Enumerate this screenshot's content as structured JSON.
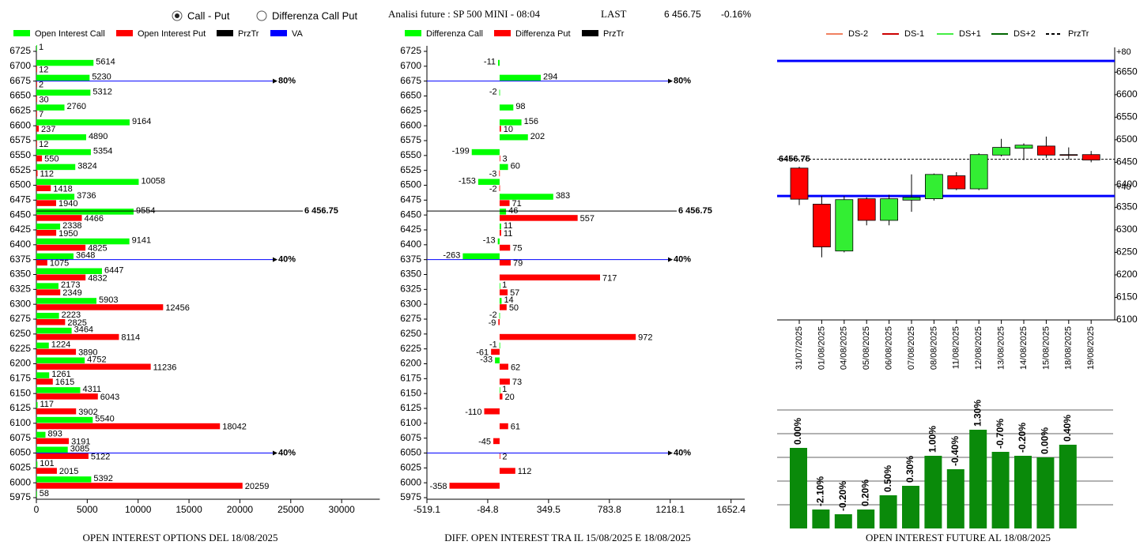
{
  "header": {
    "options": [
      "Call - Put",
      "Differenza Call Put"
    ],
    "title": "Analisi future : SP 500 MINI - 08:04",
    "last_label": "LAST",
    "last": "6 456.75",
    "change": "-0.16%"
  },
  "chart_data": [
    {
      "type": "hbar",
      "title": "OPEN INTEREST OPTIONS DEL 18/08/2025",
      "categories": [
        6725,
        6700,
        6675,
        6650,
        6625,
        6600,
        6575,
        6550,
        6525,
        6500,
        6475,
        6450,
        6425,
        6400,
        6375,
        6350,
        6325,
        6300,
        6275,
        6250,
        6225,
        6200,
        6175,
        6150,
        6125,
        6100,
        6075,
        6050,
        6025,
        6000,
        5975
      ],
      "series": [
        {
          "name": "Open Interest Call",
          "color": "#00ff00",
          "values": [
            1,
            5614,
            5230,
            5312,
            2760,
            9164,
            4890,
            5354,
            3824,
            10058,
            3736,
            9554,
            2338,
            9141,
            3648,
            6447,
            2173,
            5903,
            2223,
            3464,
            1224,
            4752,
            1261,
            4311,
            117,
            5540,
            893,
            3085,
            101,
            5392,
            58
          ]
        },
        {
          "name": "Open Interest Put",
          "color": "#ff0000",
          "values": [
            null,
            12,
            2,
            30,
            7,
            237,
            12,
            550,
            112,
            1418,
            1940,
            4466,
            1950,
            4825,
            1075,
            4832,
            2349,
            12456,
            2825,
            8114,
            3890,
            11236,
            1615,
            6043,
            3902,
            18042,
            3191,
            5122,
            2015,
            20259,
            null
          ]
        }
      ],
      "xlim": [
        0,
        33750
      ],
      "xticks": [
        0,
        5000,
        10000,
        15000,
        20000,
        25000,
        30000
      ],
      "lines": [
        {
          "name": "PrzTr",
          "color": "#000000",
          "levels": [
            {
              "value": 6456.75,
              "label": "6 456.75"
            }
          ]
        },
        {
          "name": "VA",
          "color": "#0000ff",
          "levels": [
            {
              "value": 6675,
              "label": "80%"
            },
            {
              "value": 6375,
              "label": "40%"
            },
            {
              "value": 6050,
              "label": "40%"
            }
          ]
        }
      ]
    },
    {
      "type": "hbar",
      "title": "DIFF. OPEN INTEREST TRA IL 15/08/2025 E 18/08/2025",
      "categories": [
        6725,
        6700,
        6675,
        6650,
        6625,
        6600,
        6575,
        6550,
        6525,
        6500,
        6475,
        6450,
        6425,
        6400,
        6375,
        6350,
        6325,
        6300,
        6275,
        6250,
        6225,
        6200,
        6175,
        6150,
        6125,
        6100,
        6075,
        6050,
        6025,
        6000,
        5975
      ],
      "series": [
        {
          "name": "Differenza Call",
          "color": "#00ff00",
          "values": [
            null,
            -11,
            294,
            -2,
            98,
            156,
            202,
            -199,
            60,
            -153,
            383,
            46,
            11,
            -13,
            -263,
            null,
            1,
            14,
            -2,
            null,
            -1,
            -33,
            null,
            1,
            null,
            null,
            null,
            null,
            null,
            null,
            null
          ]
        },
        {
          "name": "Differenza Put",
          "color": "#ff0000",
          "values": [
            null,
            null,
            null,
            null,
            null,
            10,
            null,
            3,
            -3,
            -2,
            71,
            557,
            11,
            75,
            79,
            717,
            57,
            50,
            -9,
            972,
            -61,
            62,
            73,
            20,
            -110,
            61,
            -45,
            2,
            112,
            -358,
            null
          ]
        }
      ],
      "xlim": [
        -519.1,
        1750
      ],
      "xticks": [
        -519.1,
        -84.8,
        349.5,
        783.8,
        1218.1,
        1652.4
      ],
      "lines": [
        {
          "name": "PrzTr",
          "color": "#000000",
          "levels": [
            {
              "value": 6456.75,
              "label": "6 456.75"
            }
          ]
        },
        {
          "color": "#0000ff",
          "levels": [
            {
              "value": 6675,
              "label": "80%"
            },
            {
              "value": 6375,
              "label": "40%"
            },
            {
              "value": 6050,
              "label": "40%"
            }
          ]
        }
      ]
    },
    {
      "type": "candlestick",
      "categories": [
        "31/07/2025",
        "01/08/2025",
        "04/08/2025",
        "05/08/2025",
        "06/08/2025",
        "07/08/2025",
        "08/08/2025",
        "11/08/2025",
        "12/08/2025",
        "13/08/2025",
        "14/08/2025",
        "15/08/2025",
        "18/08/2025",
        "19/08/2025"
      ],
      "open": [
        6437,
        6357,
        6253,
        6369,
        6321,
        6366,
        6369,
        6420,
        6391,
        6466,
        6481,
        6486,
        6467,
        6467
      ],
      "high": [
        6440,
        6375,
        6375,
        6372,
        6378,
        6423,
        6425,
        6428,
        6470,
        6502,
        6492,
        6507,
        6483,
        6475
      ],
      "low": [
        6355,
        6239,
        6250,
        6310,
        6310,
        6340,
        6365,
        6388,
        6388,
        6463,
        6455,
        6460,
        6456,
        6450
      ],
      "close": [
        6368,
        6262,
        6367,
        6321,
        6369,
        6372,
        6423,
        6391,
        6467,
        6483,
        6488,
        6466,
        6466,
        6455
      ],
      "up_color": "#33ee33",
      "down_color": "#ff0000",
      "ylim": [
        6100,
        6705
      ],
      "yticks": [
        6100,
        6150,
        6200,
        6250,
        6300,
        6350,
        6400,
        6450,
        6500,
        6550,
        6600,
        6650
      ],
      "legend": [
        {
          "name": "DS-2",
          "color": "#f08060"
        },
        {
          "name": "DS-1",
          "color": "#cc0000"
        },
        {
          "name": "DS+1",
          "color": "#44ee44"
        },
        {
          "name": "DS+2",
          "color": "#006600"
        },
        {
          "name": "PrzTr",
          "color": "#000000",
          "dash": true
        }
      ],
      "levels": [
        {
          "value": 6456.75,
          "label": "6456.75",
          "color": "#000000",
          "dash": true
        },
        {
          "value": 6675,
          "label": "+80",
          "color": "#0000ff"
        },
        {
          "value": 6375,
          "label": "+40",
          "color": "#0000ff"
        }
      ]
    },
    {
      "type": "bar",
      "title": "OPEN INTEREST FUTURE AL 18/08/2025",
      "values": [
        102,
        24,
        18,
        24,
        42,
        54,
        92,
        75,
        125,
        97,
        92,
        90,
        106
      ],
      "bar_labels": [
        "0.00%",
        "-2.10%",
        "-0.20%",
        "0.20%",
        "0.50%",
        "0.30%",
        "1.00%",
        "-0.40%",
        "1.30%",
        "-0.70%",
        "-0.20%",
        "0.00%",
        "0.40%"
      ],
      "color": "#0a8a0a",
      "ylim": [
        0,
        150
      ],
      "ygrid": [
        30,
        60,
        90,
        120,
        150
      ]
    }
  ]
}
